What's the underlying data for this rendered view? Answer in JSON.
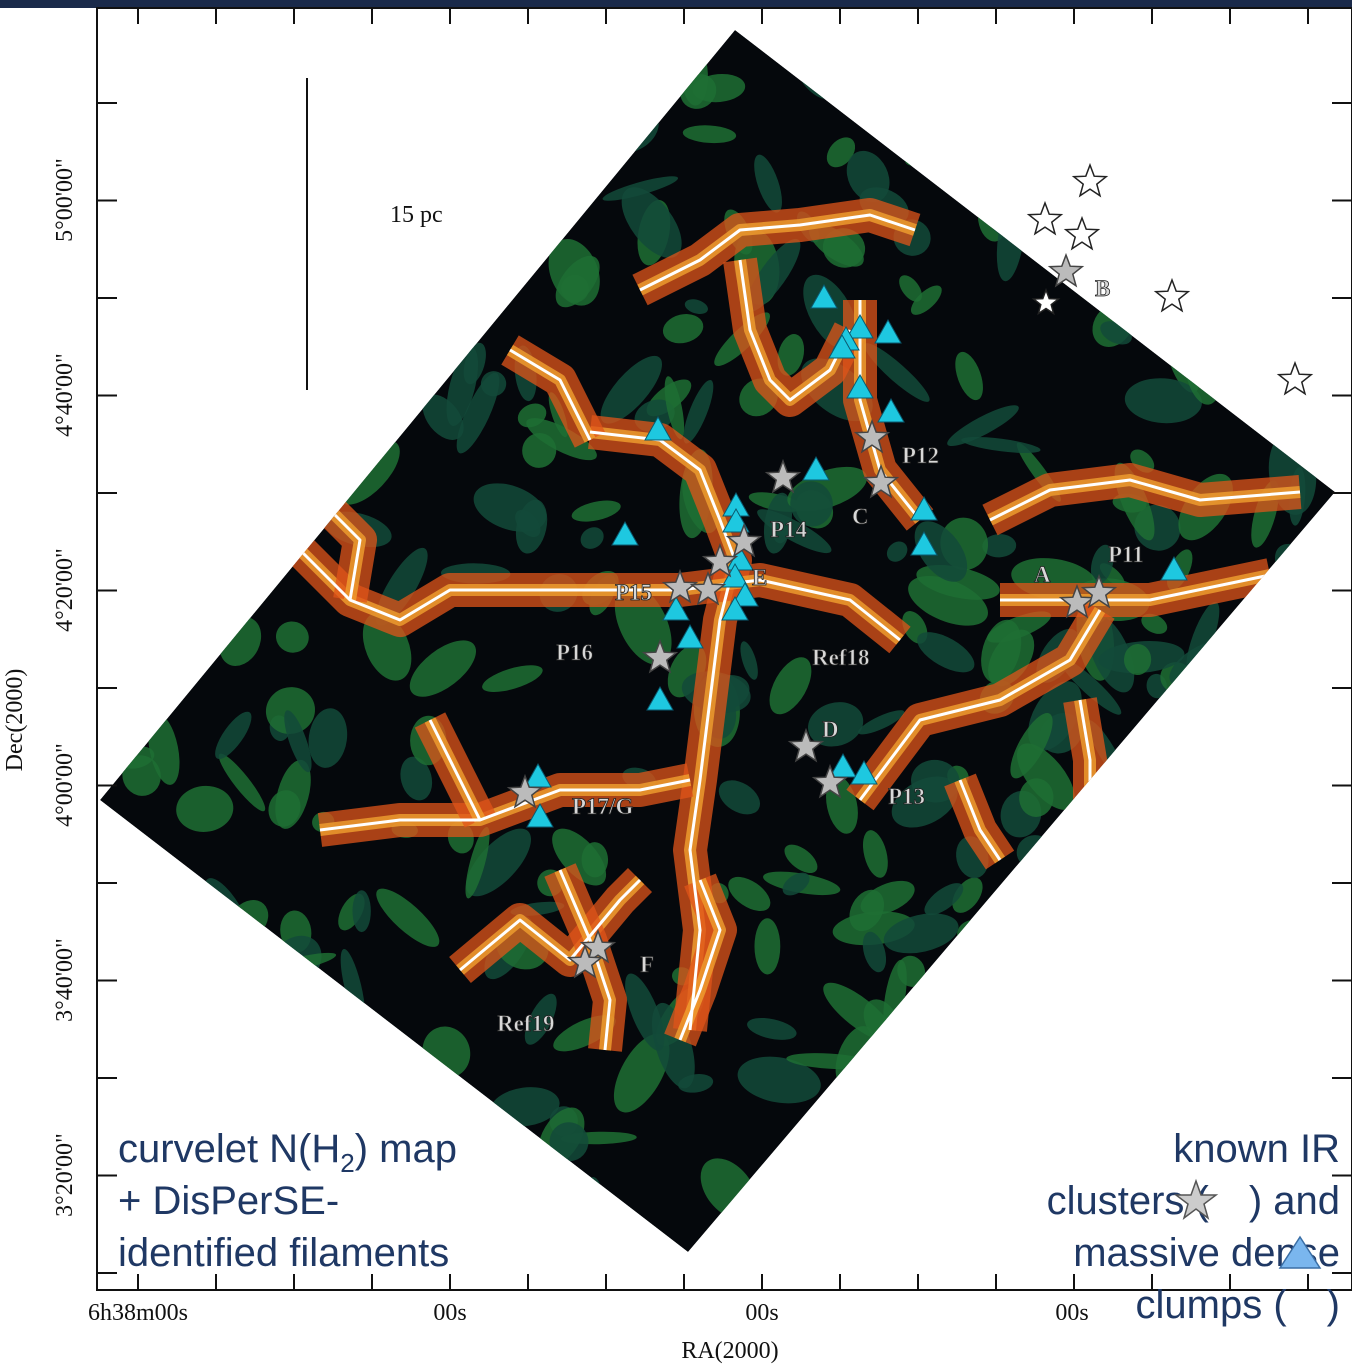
{
  "axes": {
    "x_label": "RA(2000)",
    "y_label": "Dec(2000)",
    "x_ticks": [
      "6h38m00s",
      "00s",
      "00s",
      "00s"
    ],
    "y_ticks": [
      "5°00'00\"",
      "4°40'00\"",
      "4°20'00\"",
      "4°00'00\"",
      "3°40'00\"",
      "3°20'00\""
    ]
  },
  "scale_bar": "15 pc",
  "region_labels": [
    "B",
    "P12",
    "P14",
    "C",
    "P11",
    "A",
    "E",
    "P15",
    "P16",
    "Ref18",
    "D",
    "P13",
    "P17/G",
    "F",
    "Ref19"
  ],
  "caption_left": {
    "line1": [
      "curvelet N(H",
      "2",
      ") map"
    ],
    "line2": "+ DisPerSE-",
    "line3": "identified filaments"
  },
  "caption_right": {
    "line1": "known IR",
    "line2": [
      "clusters (",
      ") and"
    ],
    "line3": "massive dense",
    "line4": [
      "clumps (",
      ")"
    ]
  }
}
